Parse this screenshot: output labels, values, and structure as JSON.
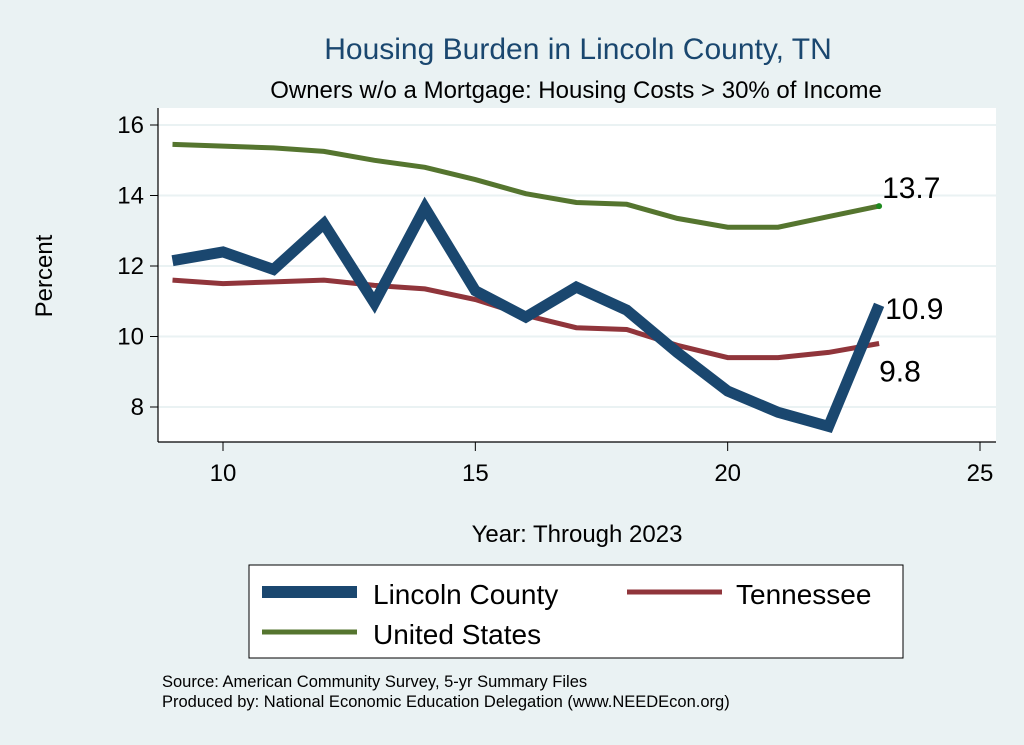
{
  "chart_data": {
    "type": "line",
    "title": "Housing Burden in Lincoln County, TN",
    "subtitle": "Owners w/o a Mortgage: Housing Costs > 30% of Income",
    "xlabel": "Year: Through 2023",
    "ylabel": "Percent",
    "xlim": [
      8.7,
      25.2
    ],
    "ylim": [
      7.0,
      16.3
    ],
    "xticks": [
      10,
      15,
      20,
      25
    ],
    "yticks": [
      8,
      10,
      12,
      14,
      16
    ],
    "grid": true,
    "x": [
      9,
      10,
      11,
      12,
      13,
      14,
      15,
      16,
      17,
      18,
      19,
      20,
      21,
      22,
      23
    ],
    "series": [
      {
        "name": "Lincoln County",
        "color": "#1a476f",
        "width": "thick",
        "values": [
          12.15,
          12.4,
          11.9,
          13.2,
          10.95,
          13.65,
          11.3,
          10.55,
          11.4,
          10.75,
          9.55,
          8.45,
          7.85,
          7.45,
          10.9
        ],
        "end_label": "10.9"
      },
      {
        "name": "Tennessee",
        "color": "#90353b",
        "width": "medium",
        "values": [
          11.6,
          11.5,
          11.55,
          11.6,
          11.45,
          11.35,
          11.05,
          10.6,
          10.25,
          10.2,
          9.75,
          9.4,
          9.4,
          9.55,
          9.8
        ],
        "end_label": "9.8"
      },
      {
        "name": "United States",
        "color": "#55752f",
        "width": "medium",
        "values": [
          15.45,
          15.4,
          15.35,
          15.25,
          15.0,
          14.8,
          14.45,
          14.05,
          13.8,
          13.75,
          13.35,
          13.1,
          13.1,
          13.4,
          13.7
        ],
        "end_label": "13.7"
      }
    ],
    "legend": {
      "placement": "bottom",
      "entries": [
        "Lincoln County",
        "Tennessee",
        "United States"
      ]
    },
    "notes": [
      "Source: American Community Survey, 5-yr Summary Files",
      "Produced by: National Economic Education Delegation (www.NEEDEcon.org)"
    ]
  }
}
